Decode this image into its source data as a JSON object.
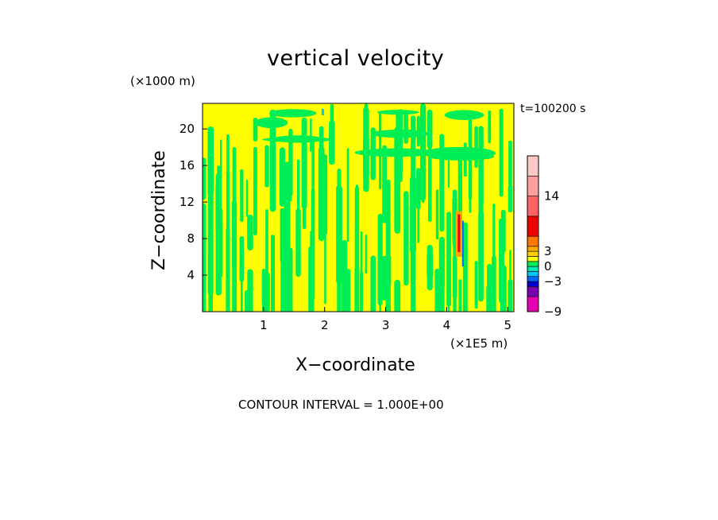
{
  "chart_data": {
    "type": "heatmap",
    "title": "vertical velocity",
    "xlabel": "X−coordinate",
    "ylabel": "Z−coordinate",
    "x_unit_label": "(×1E5 m)",
    "y_unit_label": "(×1000 m)",
    "time_label": "t=100200 s",
    "contour_label": "CONTOUR INTERVAL = 1.000E+00",
    "xlim": [
      0,
      5.1
    ],
    "ylim": [
      0,
      22.8
    ],
    "x_ticks": [
      1,
      2,
      3,
      4,
      5
    ],
    "y_ticks": [
      4,
      8,
      12,
      16,
      20
    ],
    "dominant_fill": {
      "positive": "#ffff00",
      "negative": "#00ee55"
    },
    "updraft_core": {
      "x": 4.2,
      "z_range": [
        6,
        11
      ]
    },
    "colorbar": {
      "tick_labels": [
        "−9",
        "−3",
        "0",
        "3",
        "14"
      ],
      "levels": [
        {
          "value": -9,
          "color": "#e600b4"
        },
        {
          "value": -6,
          "color": "#7a00b4"
        },
        {
          "value": -4,
          "color": "#0000d2"
        },
        {
          "value": -3,
          "color": "#0066ff"
        },
        {
          "value": -2,
          "color": "#00c8ff"
        },
        {
          "value": -1,
          "color": "#00e6b4"
        },
        {
          "value": 0,
          "color": "#00ee55"
        },
        {
          "value": 1,
          "color": "#ffff00"
        },
        {
          "value": 2,
          "color": "#ffd200"
        },
        {
          "value": 3,
          "color": "#ffaa00"
        },
        {
          "value": 4,
          "color": "#ff7800"
        },
        {
          "value": 6,
          "color": "#ee0000"
        },
        {
          "value": 10,
          "color": "#ff6464"
        },
        {
          "value": 14,
          "color": "#ffa0a0"
        },
        {
          "value": 18,
          "color": "#ffc8c8"
        }
      ]
    }
  }
}
